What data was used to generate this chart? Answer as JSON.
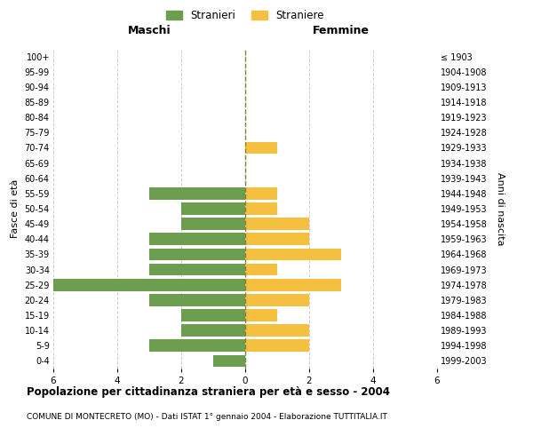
{
  "age_groups": [
    "0-4",
    "5-9",
    "10-14",
    "15-19",
    "20-24",
    "25-29",
    "30-34",
    "35-39",
    "40-44",
    "45-49",
    "50-54",
    "55-59",
    "60-64",
    "65-69",
    "70-74",
    "75-79",
    "80-84",
    "85-89",
    "90-94",
    "95-99",
    "100+"
  ],
  "birth_years": [
    "1999-2003",
    "1994-1998",
    "1989-1993",
    "1984-1988",
    "1979-1983",
    "1974-1978",
    "1969-1973",
    "1964-1968",
    "1959-1963",
    "1954-1958",
    "1949-1953",
    "1944-1948",
    "1939-1943",
    "1934-1938",
    "1929-1933",
    "1924-1928",
    "1919-1923",
    "1914-1918",
    "1909-1913",
    "1904-1908",
    "≤ 1903"
  ],
  "males": [
    1,
    3,
    2,
    2,
    3,
    6,
    3,
    3,
    3,
    2,
    2,
    3,
    0,
    0,
    0,
    0,
    0,
    0,
    0,
    0,
    0
  ],
  "females": [
    0,
    2,
    2,
    1,
    2,
    3,
    1,
    3,
    2,
    2,
    1,
    1,
    0,
    0,
    1,
    0,
    0,
    0,
    0,
    0,
    0
  ],
  "male_color": "#6d9e4f",
  "female_color": "#f5c040",
  "title_main": "Popolazione per cittadinanza straniera per età e sesso - 2004",
  "title_sub": "COMUNE DI MONTECRETO (MO) - Dati ISTAT 1° gennaio 2004 - Elaborazione TUTTITALIA.IT",
  "xlabel_left": "Maschi",
  "xlabel_right": "Femmine",
  "ylabel_left": "Fasce di età",
  "ylabel_right": "Anni di nascita",
  "legend_male": "Stranieri",
  "legend_female": "Straniere",
  "xlim": 6,
  "background_color": "#ffffff",
  "grid_color": "#cccccc",
  "bar_height": 0.8,
  "center_line_color": "#808040"
}
